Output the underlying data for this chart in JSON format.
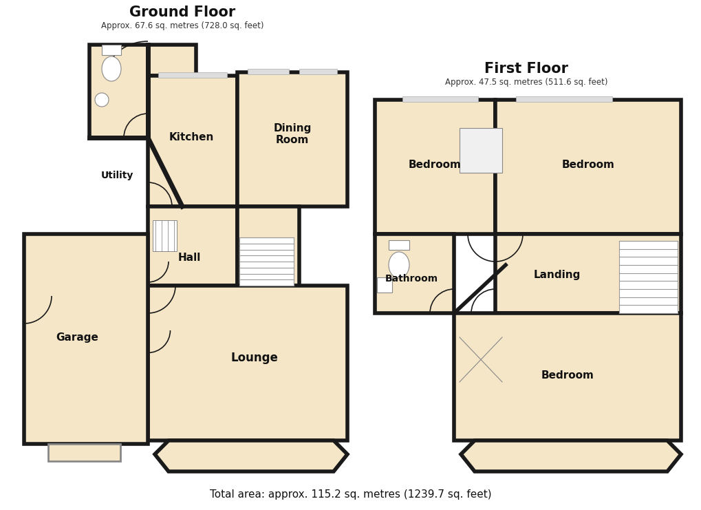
{
  "bg_color": "#ffffff",
  "wall_color": "#1a1a1a",
  "room_fill": "#f5e6c8",
  "wall_lw": 4.0,
  "thin_lw": 1.2,
  "title_gf": "Ground Floor",
  "subtitle_gf": "Approx. 67.6 sq. metres (728.0 sq. feet)",
  "title_ff": "First Floor",
  "subtitle_ff": "Approx. 47.5 sq. metres (511.6 sq. feet)",
  "total_area": "Total area: approx. 115.2 sq. metres (1239.7 sq. feet)"
}
